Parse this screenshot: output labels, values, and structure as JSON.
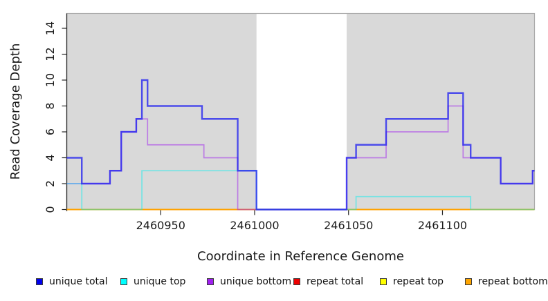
{
  "chart_data": {
    "type": "step-line",
    "title": "",
    "xlabel": "Coordinate in Reference Genome",
    "ylabel": "Read Coverage Depth",
    "xlim": [
      2460900,
      2461149
    ],
    "ylim": [
      0,
      15.15
    ],
    "x_ticks": [
      2460950,
      2461000,
      2461050,
      2461100
    ],
    "y_ticks": [
      0,
      2,
      4,
      6,
      8,
      10,
      12,
      14
    ],
    "grid": false,
    "legend_position": "bottom",
    "panel_color": "#D9D9D9",
    "gap_color": "#FFFFFF",
    "shaded_regions": [
      [
        2460900,
        2461001
      ],
      [
        2461049,
        2461149
      ]
    ],
    "gap_region": [
      2461001,
      2461049
    ],
    "series": [
      {
        "name": "unique total",
        "color": "#2222F0",
        "legend_color": "#0000EE",
        "opacity": 0.78,
        "width": 2.4,
        "points": [
          [
            2460900,
            4
          ],
          [
            2460908,
            2
          ],
          [
            2460923,
            3
          ],
          [
            2460929,
            6
          ],
          [
            2460937,
            7
          ],
          [
            2460940,
            10
          ],
          [
            2460943,
            8
          ],
          [
            2460972,
            7
          ],
          [
            2460991,
            3
          ],
          [
            2461001,
            0
          ],
          [
            2461049,
            4
          ],
          [
            2461054,
            5
          ],
          [
            2461070,
            7
          ],
          [
            2461103,
            9
          ],
          [
            2461111,
            5
          ],
          [
            2461115,
            4
          ],
          [
            2461131,
            2
          ],
          [
            2461148,
            3
          ]
        ],
        "x_end": 2461149
      },
      {
        "name": "unique top",
        "color": "#00F0F0",
        "legend_color": "#00FFFF",
        "opacity": 0.45,
        "width": 1.8,
        "points": [
          [
            2460900,
            2
          ],
          [
            2460908,
            0
          ],
          [
            2460940,
            3
          ],
          [
            2461001,
            0
          ],
          [
            2461054,
            1
          ],
          [
            2461115,
            0
          ]
        ],
        "x_end": 2461149
      },
      {
        "name": "unique bottom",
        "color": "#A020F0",
        "legend_color": "#A020F0",
        "opacity": 0.5,
        "width": 1.7,
        "points": [
          [
            2460900,
            2
          ],
          [
            2460923,
            3
          ],
          [
            2460929,
            6
          ],
          [
            2460937,
            7
          ],
          [
            2460943,
            5
          ],
          [
            2460973,
            4
          ],
          [
            2460991,
            0
          ],
          [
            2461049,
            4
          ],
          [
            2461070,
            6
          ],
          [
            2461103,
            8
          ],
          [
            2461111,
            4
          ],
          [
            2461131,
            2
          ],
          [
            2461148,
            3
          ]
        ],
        "x_end": 2461149
      },
      {
        "name": "repeat total",
        "color": "#DD0000",
        "legend_color": "#EE0000",
        "opacity": 1,
        "width": 1.5,
        "points": [
          [
            2460900,
            0
          ]
        ],
        "x_end": 2461149
      },
      {
        "name": "repeat top",
        "color": "#FFFF00",
        "legend_color": "#FFFF00",
        "opacity": 1,
        "width": 1.5,
        "points": [
          [
            2460900,
            0
          ]
        ],
        "x_end": 2461149
      },
      {
        "name": "repeat bottom",
        "color": "#FFA200",
        "legend_color": "#FFA500",
        "opacity": 1,
        "width": 2,
        "points": [
          [
            2460900,
            0
          ]
        ],
        "x_end": 2461149
      }
    ],
    "z_order": [
      3,
      4,
      5,
      2,
      1,
      0
    ]
  }
}
